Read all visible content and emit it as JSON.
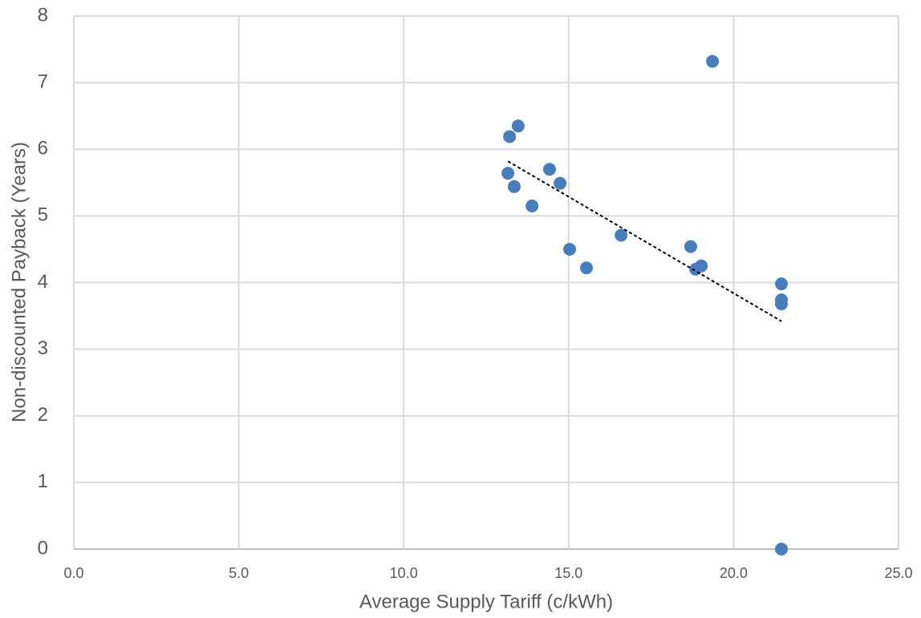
{
  "chart_data": {
    "type": "scatter",
    "xlabel": "Average Supply Tariff (c/kWh)",
    "ylabel": "Non-discounted Payback (Years)",
    "x": [
      19.36,
      13.47,
      13.21,
      13.16,
      13.35,
      14.42,
      14.74,
      13.89,
      15.03,
      15.54,
      16.59,
      18.7,
      19.02,
      18.85,
      21.45,
      21.45,
      21.45,
      21.45
    ],
    "y": [
      7.32,
      6.35,
      6.19,
      5.64,
      5.44,
      5.7,
      5.49,
      5.15,
      4.5,
      4.22,
      4.71,
      4.54,
      4.25,
      4.2,
      3.98,
      3.74,
      3.68,
      0.0
    ],
    "color": "#4a7ebb",
    "trendline": {
      "x": [
        13.16,
        21.45
      ],
      "y": [
        5.82,
        3.42
      ],
      "color": "#000000"
    },
    "xlim": [
      0,
      25
    ],
    "ylim": [
      0,
      8
    ],
    "xticks": [
      {
        "value": 0,
        "label": "0.0"
      },
      {
        "value": 5,
        "label": "5.0"
      },
      {
        "value": 10,
        "label": "10.0"
      },
      {
        "value": 15,
        "label": "15.0"
      },
      {
        "value": 20,
        "label": "20.0"
      },
      {
        "value": 25,
        "label": "25.0"
      }
    ],
    "yticks": [
      0,
      1,
      2,
      3,
      4,
      5,
      6,
      7,
      8
    ],
    "grid": true
  }
}
